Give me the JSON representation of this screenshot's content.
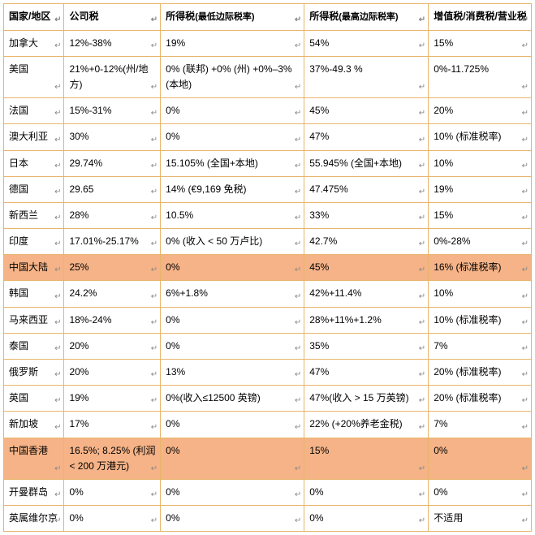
{
  "columns": [
    {
      "label": "国家/地区",
      "sub": ""
    },
    {
      "label": "公司税",
      "sub": ""
    },
    {
      "label": "所得税",
      "sub": "(最低边际税率)"
    },
    {
      "label": "所得税",
      "sub": "(最高边际税率)"
    },
    {
      "label": "增值税/消费税/营业税",
      "sub": ""
    }
  ],
  "highlightRows": [
    8,
    15
  ],
  "highlightColor": "#f5b387",
  "borderColor": "#e8b56b",
  "rows": [
    {
      "c0": "加拿大",
      "c1": "12%-38%",
      "c2": "19%",
      "c3": "54%",
      "c4": "15%"
    },
    {
      "c0": "美国",
      "c1": "21%+0-12%(州/地方)",
      "c2": "0% (联邦) +0% (州) +0%–3% (本地)",
      "c3": "37%-49.3 %",
      "c4": "0%-11.725%"
    },
    {
      "c0": "法国",
      "c1": "15%-31%",
      "c2": "0%",
      "c3": "45%",
      "c4": "20%"
    },
    {
      "c0": "澳大利亚",
      "c1": "30%",
      "c2": "0%",
      "c3": "47%",
      "c4": "10% (标准税率)"
    },
    {
      "c0": "日本",
      "c1": "29.74%",
      "c2": "15.105% (全国+本地)",
      "c3": "55.945% (全国+本地)",
      "c4": "10%"
    },
    {
      "c0": "德国",
      "c1": "29.65",
      "c2": "14% (€9,169 免税)",
      "c3": "47.475%",
      "c4": "19%"
    },
    {
      "c0": "新西兰",
      "c1": "28%",
      "c2": "10.5%",
      "c3": "33%",
      "c4": "15%"
    },
    {
      "c0": "印度",
      "c1": "17.01%-25.17%",
      "c2": "0% (收入 < 50 万卢比)",
      "c3": "42.7%",
      "c4": "0%-28%"
    },
    {
      "c0": "中国大陆",
      "c1": "25%",
      "c2": "0%",
      "c3": "45%",
      "c4": "16% (标准税率)"
    },
    {
      "c0": "韩国",
      "c1": "24.2%",
      "c2": "6%+1.8%",
      "c3": "42%+11.4%",
      "c4": "10%"
    },
    {
      "c0": "马来西亚",
      "c1": "18%-24%",
      "c2": "0%",
      "c3": "28%+11%+1.2%",
      "c4": "10% (标准税率)"
    },
    {
      "c0": "泰国",
      "c1": "20%",
      "c2": "0%",
      "c3": "35%",
      "c4": "7%"
    },
    {
      "c0": "俄罗斯",
      "c1": "20%",
      "c2": "13%",
      "c3": "47%",
      "c4": "20% (标准税率)"
    },
    {
      "c0": "英国",
      "c1": "19%",
      "c2": "0%(收入≤12500 英镑)",
      "c3": "47%(收入 > 15 万英镑)",
      "c4": "20% (标准税率)"
    },
    {
      "c0": "新加坡",
      "c1": "17%",
      "c2": "0%",
      "c3": "22% (+20%养老金税)",
      "c4": "7%"
    },
    {
      "c0": "中国香港",
      "c1": "16.5%; 8.25% (利润 < 200 万港元)",
      "c2": "0%",
      "c3": "15%",
      "c4": "0%"
    },
    {
      "c0": "开曼群岛",
      "c1": "0%",
      "c2": "0%",
      "c3": "0%",
      "c4": "0%"
    },
    {
      "c0": "英属维尔京",
      "c1": "0%",
      "c2": "0%",
      "c3": "0%",
      "c4": "不适用"
    }
  ],
  "cellMarker": "↵"
}
